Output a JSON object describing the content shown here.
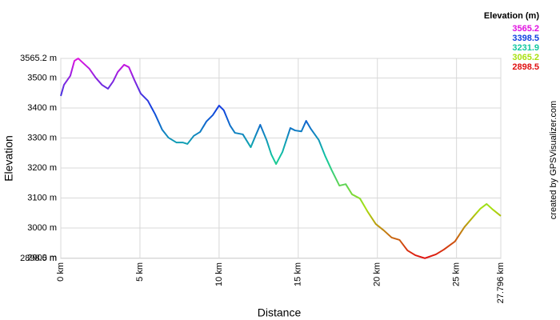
{
  "chart_data": {
    "type": "line",
    "x_label": "Distance",
    "y_label": "Elevation",
    "legend_title": "Elevation (m)",
    "credit": "created by GPSVisualizer.com",
    "color_scale": [
      {
        "value": 3565.2,
        "color": "#e010e0"
      },
      {
        "value": 3398.5,
        "color": "#1040e0"
      },
      {
        "value": 3231.9,
        "color": "#10c8a0"
      },
      {
        "value": 3065.2,
        "color": "#a8e010"
      },
      {
        "value": 2898.5,
        "color": "#e01010"
      }
    ],
    "x": [
      0,
      0.2,
      0.6,
      0.86,
      1.1,
      1.47,
      1.8,
      2.2,
      2.6,
      2.98,
      3.3,
      3.6,
      4.0,
      4.3,
      4.65,
      5.05,
      5.5,
      5.96,
      6.4,
      6.8,
      7.3,
      7.7,
      8.0,
      8.4,
      8.8,
      9.2,
      9.6,
      10.0,
      10.3,
      10.7,
      11.0,
      11.5,
      12.0,
      12.3,
      12.6,
      13.0,
      13.3,
      13.6,
      14.0,
      14.5,
      14.8,
      15.2,
      15.5,
      15.8,
      16.3,
      16.7,
      17.1,
      17.6,
      18.0,
      18.4,
      18.9,
      19.4,
      19.9,
      20.4,
      20.9,
      21.4,
      21.9,
      22.4,
      23.0,
      23.7,
      24.2,
      24.9,
      25.5,
      26.1,
      26.5,
      26.9,
      27.3,
      27.796
    ],
    "values": [
      3440,
      3477,
      3507,
      3557,
      3565,
      3547,
      3531,
      3501,
      3477,
      3464,
      3488,
      3520,
      3544,
      3536,
      3493,
      3448,
      3424,
      3379,
      3328,
      3301,
      3285,
      3285,
      3280,
      3307,
      3320,
      3355,
      3376,
      3408,
      3392,
      3341,
      3317,
      3312,
      3269,
      3307,
      3344,
      3293,
      3245,
      3213,
      3253,
      3333,
      3325,
      3322,
      3357,
      3330,
      3293,
      3240,
      3194,
      3141,
      3146,
      3112,
      3098,
      3053,
      3013,
      2992,
      2968,
      2960,
      2925,
      2909,
      2899,
      2912,
      2928,
      2955,
      3003,
      3040,
      3064,
      3080,
      3061,
      3040
    ],
    "xlim": [
      0,
      27.796
    ],
    "xticks": [
      {
        "value": 0,
        "label": "0 km"
      },
      {
        "value": 5,
        "label": "5 km"
      },
      {
        "value": 10,
        "label": "10 km"
      },
      {
        "value": 15,
        "label": "15 km"
      },
      {
        "value": 20,
        "label": "20 km"
      },
      {
        "value": 25,
        "label": "25 km"
      },
      {
        "value": 27.796,
        "label": "27.796 km"
      }
    ],
    "ylim": [
      2898.5,
      3565.2
    ],
    "yticks": [
      {
        "value": 2898.5,
        "label": "2898.5 m"
      },
      {
        "value": 2900,
        "label": "2900 m"
      },
      {
        "value": 3000,
        "label": "3000 m"
      },
      {
        "value": 3100,
        "label": "3100 m"
      },
      {
        "value": 3200,
        "label": "3200 m"
      },
      {
        "value": 3300,
        "label": "3300 m"
      },
      {
        "value": 3400,
        "label": "3400 m"
      },
      {
        "value": 3500,
        "label": "3500 m"
      },
      {
        "value": 3565.2,
        "label": "3565.2 m"
      }
    ],
    "grid": true
  }
}
